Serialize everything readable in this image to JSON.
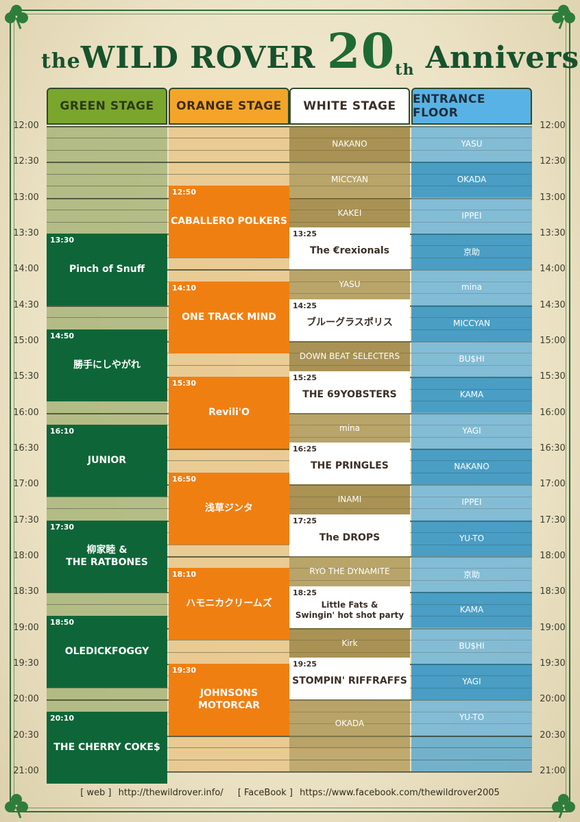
{
  "title": {
    "prefix": "the",
    "name": "WILD ROVER",
    "number": "20",
    "suffix": "th",
    "word": "Anniversary"
  },
  "stages": [
    {
      "label": "GREEN STAGE",
      "header_color": "#7aa62e",
      "text_color": "#2c3a12"
    },
    {
      "label": "ORANGE STAGE",
      "header_color": "#f3a52a",
      "text_color": "#3d2b10"
    },
    {
      "label": "WHITE STAGE",
      "header_color": "#ffffff",
      "text_color": "#3b2f26"
    },
    {
      "label": "ENTRANCE FLOOR",
      "header_color": "#59b2e6",
      "text_color": "#1e2d3a"
    }
  ],
  "times": [
    "12:00",
    "12:30",
    "13:00",
    "13:30",
    "14:00",
    "14:30",
    "15:00",
    "15:30",
    "16:00",
    "16:30",
    "17:00",
    "17:30",
    "18:00",
    "18:30",
    "19:00",
    "19:30",
    "20:00",
    "20:30",
    "21:00"
  ],
  "green": [
    {
      "start": "13:30",
      "name": "Pinch of Snuff"
    },
    {
      "start": "14:50",
      "name": "勝手にしやがれ"
    },
    {
      "start": "16:10",
      "name": "JUNIOR"
    },
    {
      "start": "17:30",
      "name": "柳家睦 &\nTHE RATBONES"
    },
    {
      "start": "18:50",
      "name": "OLEDICKFOGGY"
    },
    {
      "start": "20:10",
      "name": "THE CHERRY COKE$"
    }
  ],
  "orange": [
    {
      "start": "12:50",
      "name": "CABALLERO POLKERS"
    },
    {
      "start": "14:10",
      "name": "ONE TRACK MIND"
    },
    {
      "start": "15:30",
      "name": "Revili'O"
    },
    {
      "start": "16:50",
      "name": "浅草ジンタ"
    },
    {
      "start": "18:10",
      "name": "ハモニカクリームズ"
    },
    {
      "start": "19:30",
      "name": "JOHNSONS\nMOTORCAR"
    }
  ],
  "white_bands": [
    {
      "start": "13:25",
      "name": "The €rexionals"
    },
    {
      "start": "14:25",
      "name": "ブルーグラスポリス"
    },
    {
      "start": "15:25",
      "name": "THE 69YOBSTERS"
    },
    {
      "start": "16:25",
      "name": "THE PRINGLES"
    },
    {
      "start": "17:25",
      "name": "The DROPS"
    },
    {
      "start": "18:25",
      "name": "Little Fats &\nSwingin' hot shot party"
    },
    {
      "start": "19:25",
      "name": "STOMPIN' RIFFRAFFS"
    }
  ],
  "white_djs": [
    "NAKANO",
    "MICCYAN",
    "KAKEI",
    "YASU",
    "DOWN BEAT SELECTERS",
    "mina",
    "INAMI",
    "RYO THE DYNAMITE",
    "Kirk",
    "OKADA"
  ],
  "entrance_djs": [
    "YASU",
    "OKADA",
    "IPPEI",
    "京助",
    "mina",
    "MICCYAN",
    "BU$HI",
    "KAMA",
    "YAGI",
    "NAKANO",
    "IPPEI",
    "YU-TO",
    "京助",
    "KAMA",
    "BU$HI",
    "YAGI",
    "YU-TO"
  ],
  "footer": {
    "web_label": "[ web ]",
    "web_url": "http://thewildrover.info/",
    "fb_label": "[ FaceBook ]",
    "fb_url": "https://www.facebook.com/thewildrover2005"
  },
  "colors": {
    "green_col": "#a9b57a",
    "orange_col": "#e8c68a",
    "white_col": "#b8a060",
    "entrance_col": "#5ea9cc",
    "green_block": "#0e6638",
    "orange_block": "#f07f12"
  }
}
